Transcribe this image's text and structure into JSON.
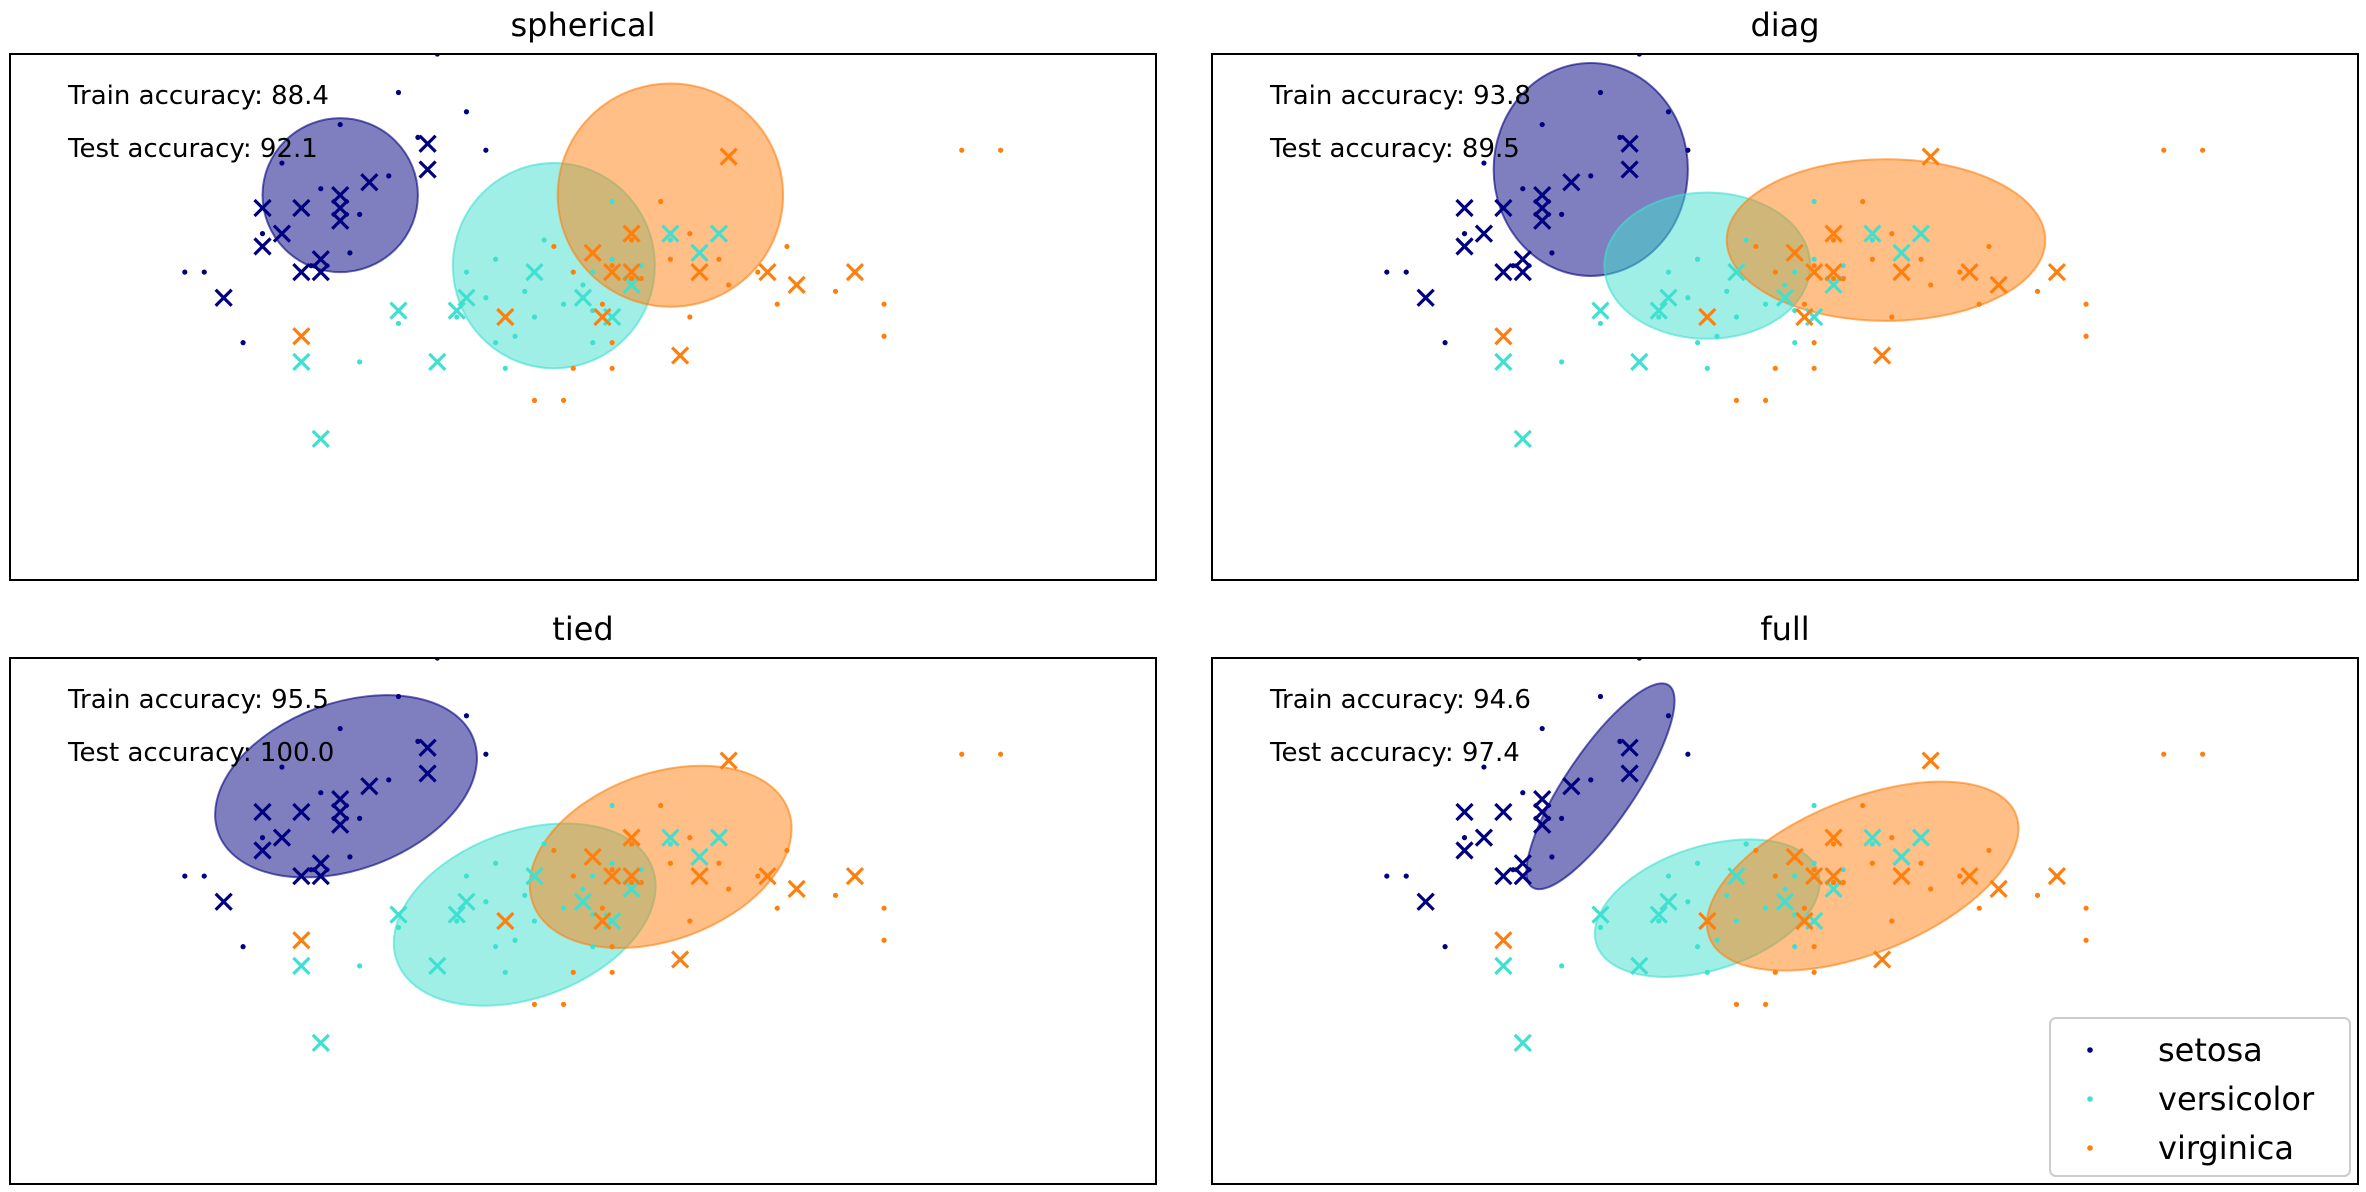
{
  "chart_data": [
    {
      "type": "scatter",
      "title": "spherical",
      "annotations": [
        "Train accuracy: 88.4",
        "Test accuracy: 92.1"
      ],
      "xlim": [
        -0.5,
        5.4
      ],
      "ylim": [
        -0.8,
        3.3
      ],
      "ellipses": [
        {
          "class": "setosa",
          "center": [
            1.2,
            2.2
          ],
          "radii": [
            0.4,
            0.6
          ],
          "angle": 0
        },
        {
          "class": "versicolor",
          "center": [
            2.3,
            1.65
          ],
          "radii": [
            0.52,
            0.8
          ],
          "angle": 0
        },
        {
          "class": "virginica",
          "center": [
            2.9,
            2.2
          ],
          "radii": [
            0.58,
            0.87
          ],
          "angle": 0
        }
      ]
    },
    {
      "type": "scatter",
      "title": "diag",
      "annotations": [
        "Train accuracy: 93.8",
        "Test accuracy: 89.5"
      ],
      "xlim": [
        -0.5,
        5.4
      ],
      "ylim": [
        -0.8,
        3.3
      ],
      "ellipses": [
        {
          "class": "setosa",
          "center": [
            1.45,
            2.4
          ],
          "radii": [
            0.5,
            0.83
          ],
          "angle": 0
        },
        {
          "class": "versicolor",
          "center": [
            2.05,
            1.65
          ],
          "radii": [
            0.53,
            0.57
          ],
          "angle": 0
        },
        {
          "class": "virginica",
          "center": [
            2.97,
            1.85
          ],
          "radii": [
            0.82,
            0.63
          ],
          "angle": 0
        }
      ]
    },
    {
      "type": "scatter",
      "title": "tied",
      "annotations": [
        "Train accuracy: 95.5",
        "Test accuracy: 100.0"
      ],
      "xlim": [
        -0.5,
        5.4
      ],
      "ylim": [
        -0.8,
        3.3
      ],
      "ellipses": [
        {
          "class": "setosa",
          "center": [
            1.23,
            2.3
          ],
          "radii": [
            0.7,
            0.65
          ],
          "angle": -20
        },
        {
          "class": "versicolor",
          "center": [
            2.15,
            1.3
          ],
          "radii": [
            0.7,
            0.65
          ],
          "angle": -20
        },
        {
          "class": "virginica",
          "center": [
            2.85,
            1.75
          ],
          "radii": [
            0.7,
            0.65
          ],
          "angle": -20
        }
      ]
    },
    {
      "type": "scatter",
      "title": "full",
      "annotations": [
        "Train accuracy: 94.6",
        "Test accuracy: 97.4"
      ],
      "xlim": [
        -0.5,
        5.4
      ],
      "ylim": [
        -0.8,
        3.3
      ],
      "ellipses": [
        {
          "class": "setosa",
          "center": [
            1.5,
            2.3
          ],
          "radii": [
            0.18,
            0.95
          ],
          "angle": 34
        },
        {
          "class": "versicolor",
          "center": [
            2.05,
            1.35
          ],
          "radii": [
            0.6,
            0.48
          ],
          "angle": -18
        },
        {
          "class": "virginica",
          "center": [
            2.85,
            1.6
          ],
          "radii": [
            0.85,
            0.6
          ],
          "angle": -22
        }
      ]
    }
  ],
  "classes": [
    {
      "name": "setosa",
      "color": "#000080"
    },
    {
      "name": "versicolor",
      "color": "#40e0d0"
    },
    {
      "name": "virginica",
      "color": "#ff7f0e"
    }
  ],
  "points": {
    "train": {
      "setosa": [
        [
          1.7,
          3.3
        ],
        [
          1.5,
          3.0
        ],
        [
          1.2,
          2.75
        ],
        [
          1.85,
          2.85
        ],
        [
          1.6,
          2.65
        ],
        [
          1.95,
          2.55
        ],
        [
          0.9,
          2.45
        ],
        [
          1.1,
          2.25
        ],
        [
          1.45,
          2.35
        ],
        [
          0.8,
          1.9
        ],
        [
          0.5,
          1.6
        ],
        [
          1.05,
          1.65
        ],
        [
          1.25,
          1.75
        ],
        [
          0.4,
          1.6
        ],
        [
          0.7,
          1.05
        ],
        [
          1.3,
          2.05
        ]
      ],
      "versicolor": [
        [
          2.6,
          2.15
        ],
        [
          2.25,
          1.85
        ],
        [
          2.0,
          1.7
        ],
        [
          2.6,
          1.7
        ],
        [
          2.45,
          1.5
        ],
        [
          1.85,
          1.6
        ],
        [
          2.15,
          1.45
        ],
        [
          2.35,
          1.35
        ],
        [
          2.5,
          1.3
        ],
        [
          2.2,
          1.25
        ],
        [
          2.1,
          1.1
        ],
        [
          1.5,
          1.2
        ],
        [
          1.8,
          1.25
        ],
        [
          2.0,
          1.05
        ],
        [
          2.5,
          1.05
        ],
        [
          2.05,
          0.85
        ],
        [
          1.95,
          1.4
        ],
        [
          2.75,
          1.65
        ],
        [
          2.9,
          1.85
        ],
        [
          1.3,
          0.9
        ],
        [
          2.7,
          1.55
        ],
        [
          2.5,
          1.6
        ]
      ],
      "virginica": [
        [
          2.85,
          2.15
        ],
        [
          2.7,
          1.85
        ],
        [
          3.0,
          1.9
        ],
        [
          2.9,
          1.7
        ],
        [
          3.35,
          1.6
        ],
        [
          3.5,
          1.8
        ],
        [
          2.7,
          1.55
        ],
        [
          2.55,
          1.35
        ],
        [
          2.75,
          1.55
        ],
        [
          2.4,
          1.6
        ],
        [
          3.2,
          1.5
        ],
        [
          3.15,
          1.7
        ],
        [
          3.85,
          1.6
        ],
        [
          3.45,
          1.35
        ],
        [
          4.0,
          1.35
        ],
        [
          4.0,
          1.1
        ],
        [
          3.75,
          1.45
        ],
        [
          4.4,
          2.55
        ],
        [
          4.6,
          2.55
        ],
        [
          2.6,
          1.05
        ],
        [
          2.4,
          0.85
        ],
        [
          2.6,
          0.85
        ],
        [
          2.2,
          0.6
        ],
        [
          2.35,
          0.6
        ],
        [
          2.3,
          1.8
        ],
        [
          3.0,
          1.25
        ],
        [
          2.6,
          1.65
        ]
      ]
    },
    "test": {
      "setosa": [
        [
          1.65,
          2.6
        ],
        [
          1.65,
          2.4
        ],
        [
          1.2,
          2.2
        ],
        [
          1.35,
          2.3
        ],
        [
          0.8,
          2.1
        ],
        [
          1.0,
          2.1
        ],
        [
          1.2,
          2.1
        ],
        [
          0.8,
          1.8
        ],
        [
          0.9,
          1.9
        ],
        [
          1.1,
          1.7
        ],
        [
          1.1,
          1.6
        ],
        [
          1.0,
          1.6
        ],
        [
          0.6,
          1.4
        ],
        [
          1.2,
          2.0
        ]
      ],
      "versicolor": [
        [
          2.9,
          1.9
        ],
        [
          3.15,
          1.9
        ],
        [
          3.05,
          1.75
        ],
        [
          2.2,
          1.6
        ],
        [
          2.7,
          1.5
        ],
        [
          2.45,
          1.4
        ],
        [
          1.8,
          1.3
        ],
        [
          1.85,
          1.4
        ],
        [
          1.5,
          1.3
        ],
        [
          1.0,
          0.9
        ],
        [
          1.1,
          0.3
        ],
        [
          1.7,
          0.9
        ],
        [
          2.6,
          1.25
        ]
      ],
      "virginica": [
        [
          3.2,
          2.5
        ],
        [
          3.05,
          1.6
        ],
        [
          3.4,
          1.6
        ],
        [
          3.55,
          1.5
        ],
        [
          3.85,
          1.6
        ],
        [
          2.55,
          1.25
        ],
        [
          2.5,
          1.75
        ],
        [
          2.6,
          1.6
        ],
        [
          2.7,
          1.9
        ],
        [
          2.7,
          1.6
        ],
        [
          2.05,
          1.25
        ],
        [
          1.0,
          1.1
        ],
        [
          2.95,
          0.95
        ]
      ]
    }
  },
  "legend": {
    "position": "lower-right",
    "panel": "full",
    "entries": [
      {
        "label": "setosa",
        "color": "#000080"
      },
      {
        "label": "versicolor",
        "color": "#40e0d0"
      },
      {
        "label": "virginica",
        "color": "#ff7f0e"
      }
    ]
  }
}
